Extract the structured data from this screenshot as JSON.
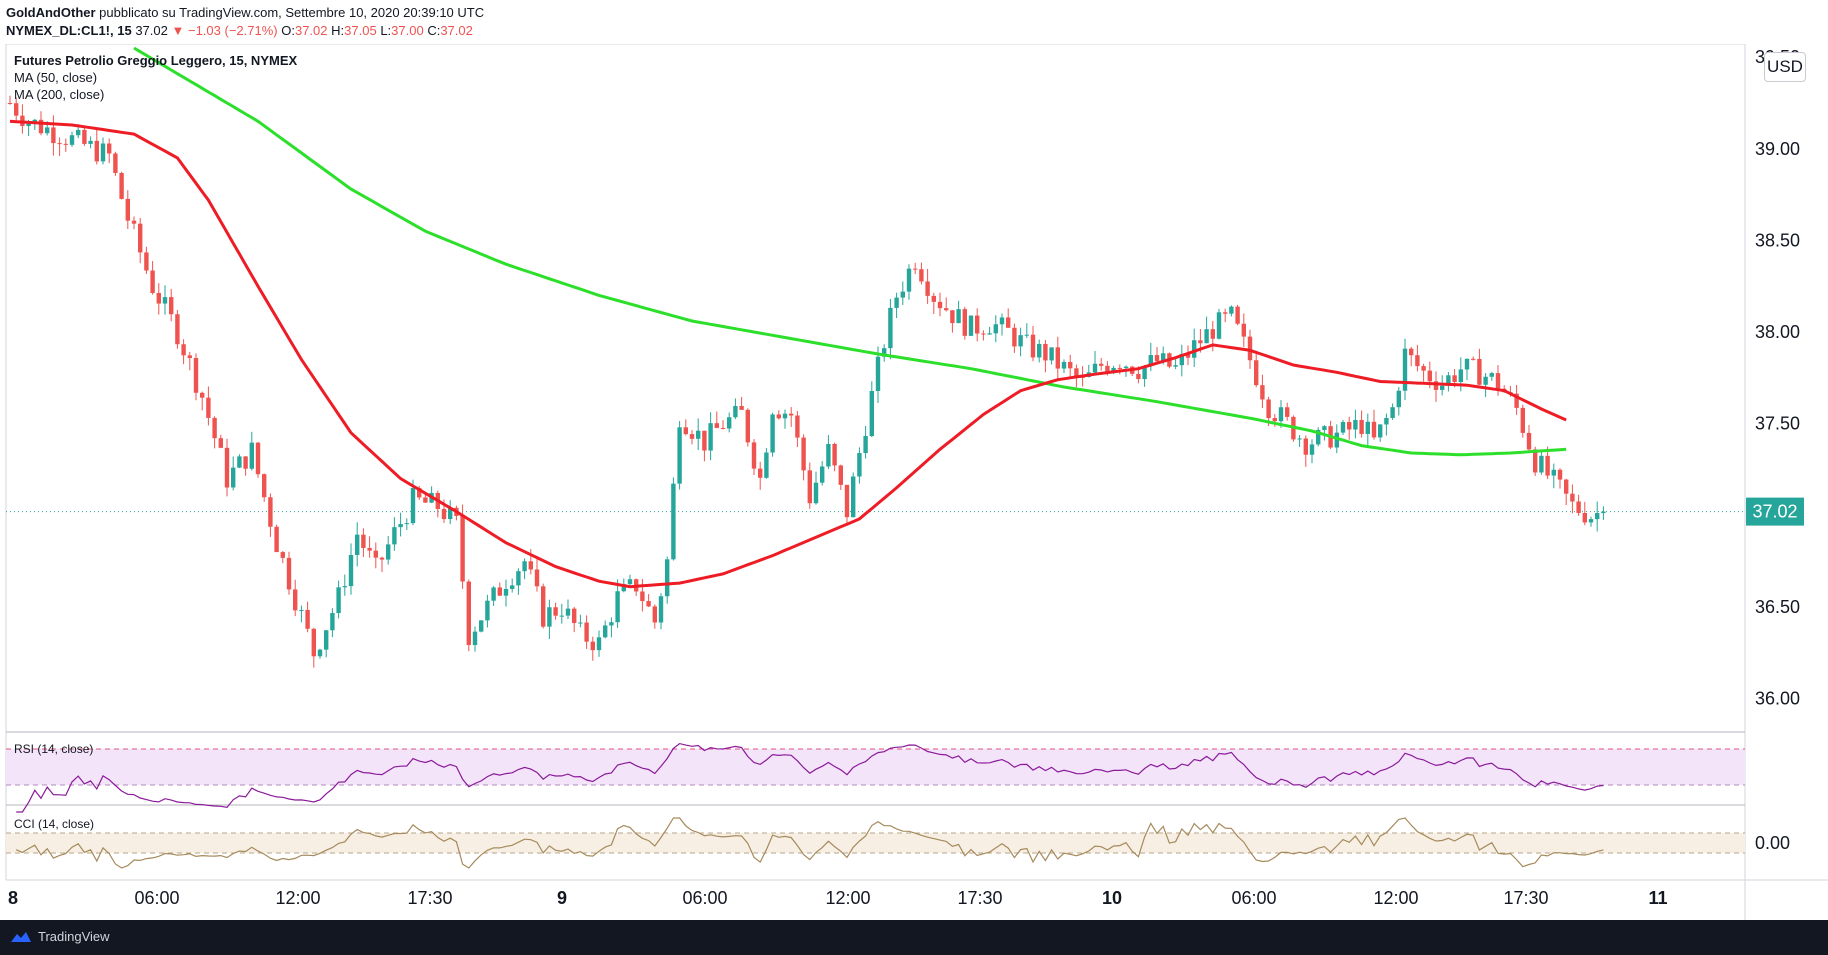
{
  "header": {
    "author": "GoldAndOther",
    "published_text": "pubblicato su TradingView.com, Settembre 10, 2020 20:39:10 UTC",
    "symbol": "NYMEX_DL:CL1!, 15",
    "last": "37.02",
    "change": "▼ −1.03 (−2.71%)",
    "ohlc": {
      "o_label": "O:",
      "o": "37.02",
      "h_label": "H:",
      "h": "37.05",
      "l_label": "L:",
      "l": "37.00",
      "c_label": "C:",
      "c": "37.02"
    }
  },
  "legend": {
    "title": "Futures Petrolio Greggio Leggero, 15, NYMEX",
    "ma50": "MA (50, close)",
    "ma200": "MA (200, close)"
  },
  "currency": "USD",
  "price_label": "37.02",
  "rsi_label": "RSI (14, close)",
  "cci_label": "CCI (14, close)",
  "cci_axis": "0.00",
  "brand": "TradingView",
  "colors": {
    "up": "#26a69a",
    "down": "#ef5350",
    "ma50": "#ee1c25",
    "ma200": "#2cdf2b",
    "rsi_line": "#8b1a9a",
    "rsi_band": "#f3e4fa",
    "cci_line": "#a68a5c",
    "cci_band": "#f7efe4",
    "price_badge": "#26a69a"
  },
  "chart_data": {
    "type": "candlestick",
    "title": "Futures Petrolio Greggio Leggero, 15, NYMEX",
    "y_ticks": [
      "39.50",
      "39.00",
      "38.50",
      "38.00",
      "37.50",
      "37.00",
      "36.50",
      "36.00"
    ],
    "ylim": [
      35.85,
      39.55
    ],
    "x_ticks": [
      "8",
      "06:00",
      "12:00",
      "17:30",
      "9",
      "06:00",
      "12:00",
      "17:30",
      "10",
      "06:00",
      "12:00",
      "17:30",
      "11"
    ],
    "last_price": 37.02,
    "close_path": [
      [
        0,
        39.25
      ],
      [
        3,
        39.15
      ],
      [
        8,
        39.08
      ],
      [
        12,
        39.02
      ],
      [
        16,
        38.96
      ],
      [
        19,
        38.62
      ],
      [
        23,
        38.25
      ],
      [
        27,
        38.0
      ],
      [
        31,
        37.65
      ],
      [
        35,
        37.2
      ],
      [
        39,
        37.35
      ],
      [
        43,
        36.85
      ],
      [
        46,
        36.55
      ],
      [
        49,
        36.25
      ],
      [
        53,
        36.55
      ],
      [
        56,
        36.9
      ],
      [
        59,
        36.7
      ],
      [
        62,
        36.9
      ],
      [
        65,
        37.08
      ],
      [
        69,
        37.05
      ],
      [
        72,
        36.95
      ],
      [
        74,
        36.35
      ],
      [
        77,
        36.5
      ],
      [
        80,
        36.65
      ],
      [
        83,
        36.75
      ],
      [
        86,
        36.45
      ],
      [
        89,
        36.5
      ],
      [
        92,
        36.35
      ],
      [
        95,
        36.3
      ],
      [
        98,
        36.55
      ],
      [
        101,
        36.62
      ],
      [
        104,
        36.42
      ],
      [
        106,
        36.75
      ],
      [
        108,
        37.55
      ],
      [
        112,
        37.4
      ],
      [
        115,
        37.5
      ],
      [
        118,
        37.55
      ],
      [
        121,
        37.2
      ],
      [
        123,
        37.6
      ],
      [
        126,
        37.55
      ],
      [
        129,
        37.1
      ],
      [
        132,
        37.35
      ],
      [
        135,
        37.02
      ],
      [
        138,
        37.5
      ],
      [
        141,
        37.95
      ],
      [
        143,
        38.2
      ],
      [
        146,
        38.4
      ],
      [
        149,
        38.2
      ],
      [
        152,
        38.1
      ],
      [
        155,
        38.02
      ],
      [
        158,
        38.05
      ],
      [
        161,
        38.0
      ],
      [
        164,
        37.92
      ],
      [
        167,
        37.88
      ],
      [
        170,
        37.8
      ],
      [
        173,
        37.72
      ],
      [
        176,
        37.82
      ],
      [
        179,
        37.85
      ],
      [
        182,
        37.8
      ],
      [
        185,
        37.84
      ],
      [
        188,
        37.8
      ],
      [
        191,
        37.92
      ],
      [
        194,
        38.02
      ],
      [
        197,
        38.08
      ],
      [
        200,
        37.85
      ],
      [
        203,
        37.6
      ],
      [
        206,
        37.5
      ],
      [
        209,
        37.4
      ],
      [
        212,
        37.42
      ],
      [
        215,
        37.45
      ],
      [
        218,
        37.5
      ],
      [
        220,
        37.4
      ],
      [
        223,
        37.58
      ],
      [
        225,
        37.88
      ],
      [
        228,
        37.78
      ],
      [
        231,
        37.72
      ],
      [
        234,
        37.8
      ],
      [
        237,
        37.78
      ],
      [
        240,
        37.72
      ],
      [
        243,
        37.58
      ],
      [
        246,
        37.3
      ],
      [
        249,
        37.18
      ],
      [
        252,
        37.05
      ],
      [
        255,
        37.0
      ],
      [
        257,
        37.02
      ]
    ],
    "ma50_path": [
      [
        0,
        39.15
      ],
      [
        10,
        39.13
      ],
      [
        20,
        39.08
      ],
      [
        27,
        38.95
      ],
      [
        32,
        38.72
      ],
      [
        40,
        38.25
      ],
      [
        47,
        37.85
      ],
      [
        55,
        37.45
      ],
      [
        63,
        37.2
      ],
      [
        72,
        37.02
      ],
      [
        80,
        36.85
      ],
      [
        88,
        36.72
      ],
      [
        95,
        36.64
      ],
      [
        100,
        36.61
      ],
      [
        108,
        36.63
      ],
      [
        115,
        36.68
      ],
      [
        123,
        36.78
      ],
      [
        130,
        36.88
      ],
      [
        137,
        36.98
      ],
      [
        143,
        37.15
      ],
      [
        150,
        37.36
      ],
      [
        157,
        37.55
      ],
      [
        163,
        37.68
      ],
      [
        169,
        37.74
      ],
      [
        175,
        37.77
      ],
      [
        182,
        37.8
      ],
      [
        188,
        37.86
      ],
      [
        194,
        37.93
      ],
      [
        200,
        37.9
      ],
      [
        207,
        37.82
      ],
      [
        214,
        37.78
      ],
      [
        221,
        37.73
      ],
      [
        228,
        37.72
      ],
      [
        235,
        37.71
      ],
      [
        241,
        37.68
      ],
      [
        247,
        37.58
      ],
      [
        251,
        37.52
      ]
    ],
    "ma200_path": [
      [
        20,
        39.55
      ],
      [
        30,
        39.35
      ],
      [
        40,
        39.15
      ],
      [
        55,
        38.78
      ],
      [
        67,
        38.55
      ],
      [
        80,
        38.37
      ],
      [
        95,
        38.2
      ],
      [
        110,
        38.06
      ],
      [
        125,
        37.97
      ],
      [
        140,
        37.88
      ],
      [
        155,
        37.8
      ],
      [
        170,
        37.7
      ],
      [
        185,
        37.62
      ],
      [
        200,
        37.53
      ],
      [
        210,
        37.46
      ],
      [
        218,
        37.38
      ],
      [
        226,
        37.34
      ],
      [
        234,
        37.33
      ],
      [
        242,
        37.34
      ],
      [
        251,
        37.36
      ]
    ],
    "rsi": {
      "name": "RSI (14, close)",
      "upper": 70,
      "lower": 30
    },
    "cci": {
      "name": "CCI (14, close)",
      "upper": 100,
      "lower": -100,
      "zero_label": "0.00"
    }
  }
}
